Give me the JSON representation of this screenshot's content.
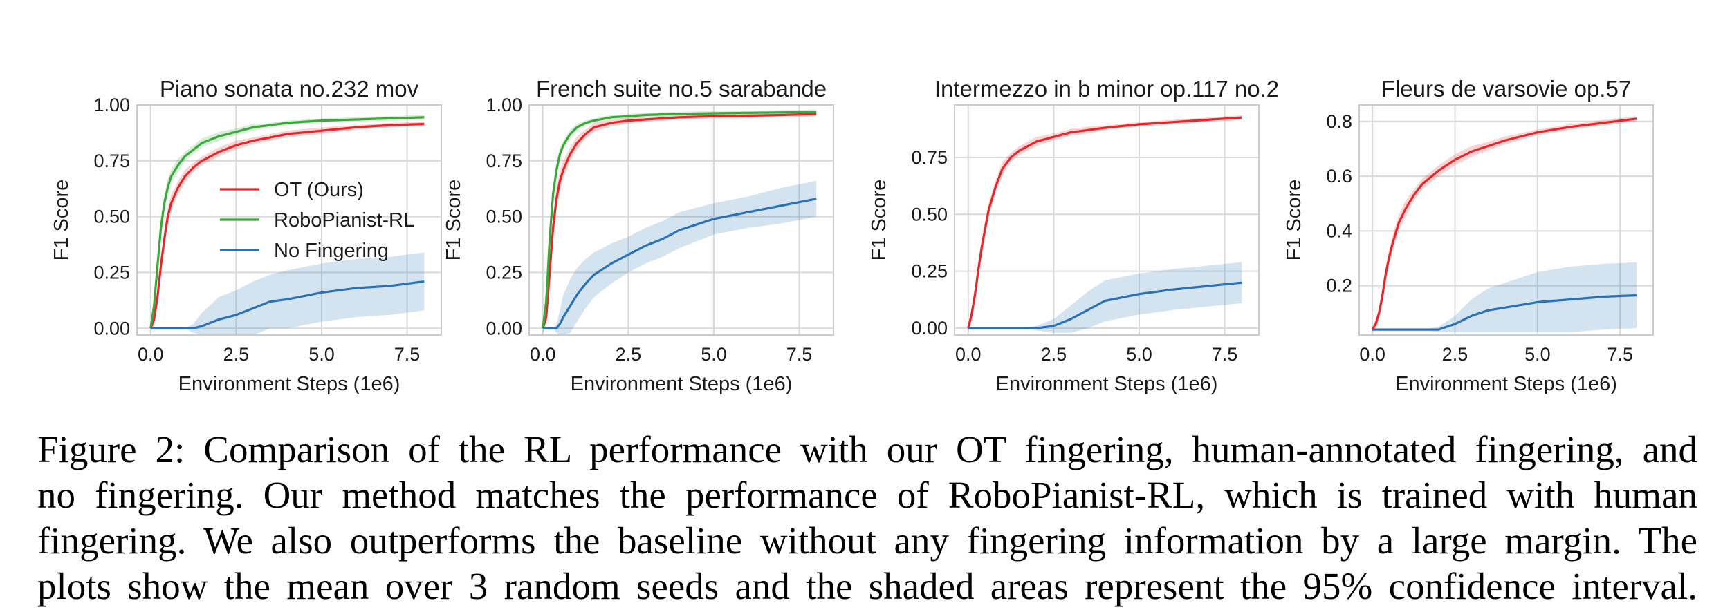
{
  "figure": {
    "legend": [
      {
        "label": "OT (Ours)",
        "color": "#e8262a"
      },
      {
        "label": "RoboPianist-RL",
        "color": "#3aa83a"
      },
      {
        "label": "No Fingering",
        "color": "#2a72b5"
      }
    ]
  },
  "caption": {
    "lines": [
      "Figure 2:  Comparison of the RL performance with our OT fingering, human-annotated fingering, and",
      "no fingering. Our method matches the performance of RoboPianist-RL, which is trained with human",
      "fingering. We also outperforms the baseline without any fingering information by a large margin. The",
      "plots show the mean over 3 random seeds and the shaded areas represent the 95% confidence interval."
    ]
  },
  "chart_data": [
    {
      "type": "line",
      "title": "Piano sonata no.232 mov",
      "xlabel": "Environment Steps (1e6)",
      "ylabel": "F1 Score",
      "xlim": [
        -0.4,
        8.5
      ],
      "ylim": [
        -0.03,
        1.0
      ],
      "xticks": [
        "0.0",
        "2.5",
        "5.0",
        "7.5"
      ],
      "xtick_values": [
        0,
        2.5,
        5,
        7.5
      ],
      "yticks": [
        "0.00",
        "0.25",
        "0.50",
        "0.75",
        "1.00"
      ],
      "ytick_values": [
        0,
        0.25,
        0.5,
        0.75,
        1.0
      ],
      "grid": true,
      "legend_position": "center",
      "x": [
        0,
        0.1,
        0.2,
        0.3,
        0.4,
        0.5,
        0.6,
        0.8,
        1.0,
        1.25,
        1.5,
        2.0,
        2.5,
        3.0,
        3.5,
        4.0,
        5.0,
        6.0,
        7.0,
        8.0
      ],
      "series": [
        {
          "name": "OT (Ours)",
          "color": "#e8262a",
          "values": [
            0,
            0.04,
            0.14,
            0.28,
            0.4,
            0.5,
            0.56,
            0.63,
            0.68,
            0.72,
            0.75,
            0.79,
            0.82,
            0.84,
            0.855,
            0.87,
            0.885,
            0.9,
            0.91,
            0.915
          ],
          "band": [
            0.02,
            0.03,
            0.04,
            0.04,
            0.04,
            0.04,
            0.04,
            0.03,
            0.03,
            0.02,
            0.02,
            0.02,
            0.02,
            0.015,
            0.015,
            0.015,
            0.015,
            0.01,
            0.01,
            0.01
          ]
        },
        {
          "name": "RoboPianist-RL",
          "color": "#3aa83a",
          "values": [
            0,
            0.1,
            0.28,
            0.45,
            0.56,
            0.63,
            0.68,
            0.73,
            0.77,
            0.8,
            0.83,
            0.86,
            0.88,
            0.9,
            0.91,
            0.92,
            0.93,
            0.935,
            0.94,
            0.945
          ],
          "band": [
            0.02,
            0.04,
            0.05,
            0.05,
            0.04,
            0.04,
            0.03,
            0.03,
            0.02,
            0.02,
            0.02,
            0.02,
            0.015,
            0.015,
            0.01,
            0.01,
            0.01,
            0.01,
            0.01,
            0.01
          ]
        },
        {
          "name": "No Fingering",
          "color": "#2a72b5",
          "values": [
            0,
            0,
            0,
            0,
            0,
            0,
            0,
            0,
            0,
            0,
            0.01,
            0.04,
            0.06,
            0.09,
            0.12,
            0.13,
            0.16,
            0.18,
            0.19,
            0.21
          ],
          "band": [
            0,
            0,
            0,
            0,
            0,
            0,
            0,
            0,
            0,
            0.02,
            0.06,
            0.1,
            0.11,
            0.12,
            0.12,
            0.13,
            0.13,
            0.13,
            0.13,
            0.13
          ]
        }
      ]
    },
    {
      "type": "line",
      "title": "French suite no.5 sarabande",
      "xlabel": "Environment Steps (1e6)",
      "ylabel": "F1 Score",
      "xlim": [
        -0.4,
        8.5
      ],
      "ylim": [
        -0.03,
        1.0
      ],
      "xticks": [
        "0.0",
        "2.5",
        "5.0",
        "7.5"
      ],
      "xtick_values": [
        0,
        2.5,
        5,
        7.5
      ],
      "yticks": [
        "0.00",
        "0.25",
        "0.50",
        "0.75",
        "1.00"
      ],
      "ytick_values": [
        0,
        0.25,
        0.5,
        0.75,
        1.0
      ],
      "grid": true,
      "x": [
        0,
        0.1,
        0.2,
        0.3,
        0.4,
        0.5,
        0.6,
        0.8,
        1.0,
        1.25,
        1.5,
        2.0,
        2.5,
        3.0,
        3.5,
        4.0,
        5.0,
        6.0,
        7.0,
        8.0
      ],
      "series": [
        {
          "name": "OT (Ours)",
          "color": "#e8262a",
          "values": [
            0,
            0.05,
            0.25,
            0.45,
            0.58,
            0.66,
            0.71,
            0.78,
            0.83,
            0.87,
            0.9,
            0.92,
            0.93,
            0.935,
            0.94,
            0.945,
            0.95,
            0.952,
            0.955,
            0.96
          ],
          "band": [
            0.02,
            0.05,
            0.06,
            0.06,
            0.05,
            0.05,
            0.04,
            0.03,
            0.03,
            0.02,
            0.02,
            0.015,
            0.015,
            0.01,
            0.01,
            0.01,
            0.01,
            0.01,
            0.01,
            0.01
          ]
        },
        {
          "name": "RoboPianist-RL",
          "color": "#3aa83a",
          "values": [
            0,
            0.12,
            0.4,
            0.6,
            0.71,
            0.78,
            0.82,
            0.87,
            0.9,
            0.92,
            0.93,
            0.945,
            0.95,
            0.955,
            0.958,
            0.96,
            0.963,
            0.965,
            0.967,
            0.97
          ],
          "band": [
            0.02,
            0.05,
            0.05,
            0.04,
            0.03,
            0.03,
            0.02,
            0.02,
            0.015,
            0.01,
            0.01,
            0.01,
            0.01,
            0.01,
            0.01,
            0.01,
            0.01,
            0.01,
            0.01,
            0.01
          ]
        },
        {
          "name": "No Fingering",
          "color": "#2a72b5",
          "values": [
            0,
            0,
            0,
            0,
            0,
            0.02,
            0.05,
            0.1,
            0.15,
            0.2,
            0.24,
            0.29,
            0.33,
            0.37,
            0.4,
            0.44,
            0.49,
            0.52,
            0.55,
            0.58
          ],
          "band": [
            0,
            0,
            0,
            0,
            0.02,
            0.06,
            0.1,
            0.12,
            0.12,
            0.11,
            0.1,
            0.09,
            0.08,
            0.08,
            0.08,
            0.08,
            0.07,
            0.07,
            0.08,
            0.08
          ]
        }
      ]
    },
    {
      "type": "line",
      "title": "Intermezzo in b minor op.117 no.2",
      "xlabel": "Environment Steps (1e6)",
      "ylabel": "F1 Score",
      "xlim": [
        -0.4,
        8.5
      ],
      "ylim": [
        -0.03,
        0.98
      ],
      "xticks": [
        "0.0",
        "2.5",
        "5.0",
        "7.5"
      ],
      "xtick_values": [
        0,
        2.5,
        5,
        7.5
      ],
      "yticks": [
        "0.00",
        "0.25",
        "0.50",
        "0.75"
      ],
      "ytick_values": [
        0,
        0.25,
        0.5,
        0.75
      ],
      "grid": true,
      "x": [
        0,
        0.1,
        0.2,
        0.3,
        0.4,
        0.5,
        0.6,
        0.8,
        1.0,
        1.25,
        1.5,
        2.0,
        2.5,
        3.0,
        3.5,
        4.0,
        5.0,
        6.0,
        7.0,
        8.0
      ],
      "series": [
        {
          "name": "OT (Ours)",
          "color": "#e8262a",
          "values": [
            0,
            0.06,
            0.15,
            0.26,
            0.36,
            0.44,
            0.52,
            0.62,
            0.7,
            0.75,
            0.78,
            0.82,
            0.84,
            0.86,
            0.87,
            0.88,
            0.895,
            0.905,
            0.915,
            0.925
          ],
          "band": [
            0.02,
            0.03,
            0.04,
            0.04,
            0.04,
            0.04,
            0.03,
            0.03,
            0.03,
            0.02,
            0.02,
            0.02,
            0.015,
            0.015,
            0.015,
            0.01,
            0.01,
            0.01,
            0.01,
            0.01
          ]
        },
        {
          "name": "No Fingering",
          "color": "#2a72b5",
          "values": [
            0,
            0,
            0,
            0,
            0,
            0,
            0,
            0,
            0,
            0,
            0,
            0,
            0.01,
            0.04,
            0.08,
            0.12,
            0.15,
            0.17,
            0.185,
            0.2
          ],
          "band": [
            0,
            0,
            0,
            0,
            0,
            0,
            0,
            0,
            0,
            0,
            0,
            0.01,
            0.03,
            0.06,
            0.08,
            0.09,
            0.09,
            0.09,
            0.09,
            0.09
          ]
        }
      ]
    },
    {
      "type": "line",
      "title": "Fleurs de varsovie op.57",
      "xlabel": "Environment Steps (1e6)",
      "ylabel": "F1 Score",
      "xlim": [
        -0.4,
        8.5
      ],
      "ylim": [
        0.02,
        0.86
      ],
      "xticks": [
        "0.0",
        "2.5",
        "5.0",
        "7.5"
      ],
      "xtick_values": [
        0,
        2.5,
        5,
        7.5
      ],
      "yticks": [
        "0.2",
        "0.4",
        "0.6",
        "0.8"
      ],
      "ytick_values": [
        0.2,
        0.4,
        0.6,
        0.8
      ],
      "grid": true,
      "x": [
        0,
        0.1,
        0.2,
        0.3,
        0.4,
        0.5,
        0.6,
        0.8,
        1.0,
        1.25,
        1.5,
        2.0,
        2.5,
        3.0,
        3.5,
        4.0,
        5.0,
        6.0,
        7.0,
        8.0
      ],
      "series": [
        {
          "name": "OT (Ours)",
          "color": "#e8262a",
          "values": [
            0.04,
            0.06,
            0.1,
            0.16,
            0.24,
            0.3,
            0.35,
            0.43,
            0.48,
            0.53,
            0.57,
            0.62,
            0.66,
            0.69,
            0.71,
            0.73,
            0.76,
            0.78,
            0.795,
            0.81
          ],
          "band": [
            0.01,
            0.02,
            0.02,
            0.03,
            0.03,
            0.03,
            0.03,
            0.03,
            0.03,
            0.02,
            0.02,
            0.02,
            0.02,
            0.02,
            0.015,
            0.015,
            0.01,
            0.01,
            0.01,
            0.01
          ]
        },
        {
          "name": "No Fingering",
          "color": "#2a72b5",
          "values": [
            0.04,
            0.04,
            0.04,
            0.04,
            0.04,
            0.04,
            0.04,
            0.04,
            0.04,
            0.04,
            0.04,
            0.04,
            0.06,
            0.09,
            0.11,
            0.12,
            0.14,
            0.15,
            0.16,
            0.165
          ],
          "band": [
            0,
            0,
            0,
            0,
            0,
            0,
            0,
            0,
            0,
            0,
            0,
            0.01,
            0.03,
            0.06,
            0.08,
            0.09,
            0.11,
            0.12,
            0.12,
            0.12
          ]
        }
      ]
    }
  ]
}
